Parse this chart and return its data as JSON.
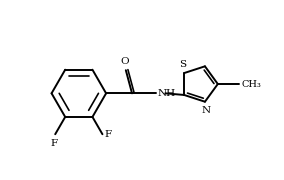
{
  "background": "#ffffff",
  "line_color": "#000000",
  "line_width": 1.4,
  "font_size": 7.5,
  "labels": {
    "O": "O",
    "NH": "NH",
    "N": "N",
    "S": "S",
    "F1": "F",
    "F2": "F",
    "CH3": "CH₃"
  },
  "xlim": [
    0.0,
    8.5
  ],
  "ylim": [
    0.5,
    5.8
  ]
}
